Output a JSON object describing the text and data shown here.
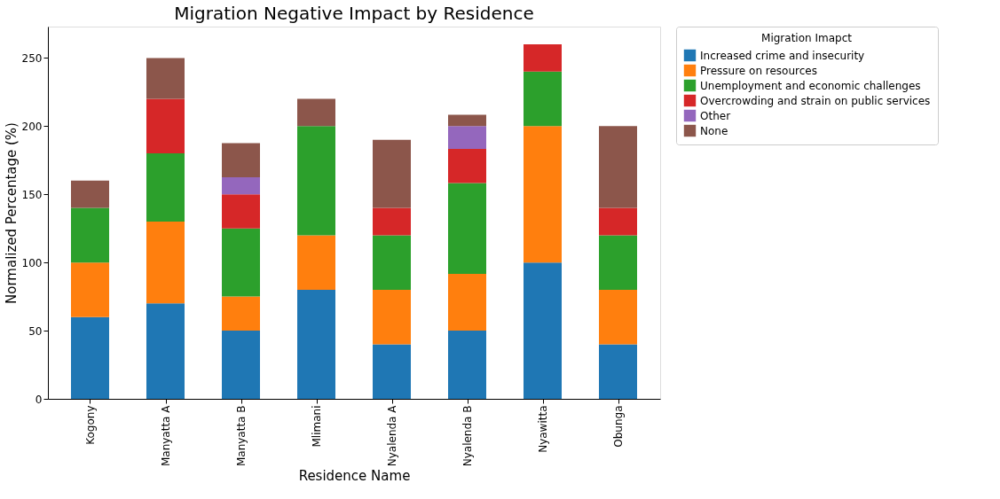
{
  "chart_data": {
    "type": "bar",
    "stacked": true,
    "title": "Migration Negative Impact by Residence",
    "xlabel": "Residence Name",
    "ylabel": "Normalized Percentage (%)",
    "legend_title": "Migration Imapct",
    "legend": "right",
    "grid": false,
    "categories": [
      "Kogony",
      "Manyatta A",
      "Manyatta B",
      "Mlimani",
      "Nyalenda A",
      "Nyalenda B",
      "Nyawitta",
      "Obunga"
    ],
    "ylim": [
      0,
      273
    ],
    "yticks": [
      0,
      50,
      100,
      150,
      200,
      250
    ],
    "series": [
      {
        "name": "Increased crime and insecurity",
        "color": "#1f77b4",
        "values": [
          60,
          70,
          50,
          80,
          40,
          50,
          100,
          40
        ]
      },
      {
        "name": "Pressure on resources",
        "color": "#ff7f0e",
        "values": [
          40,
          60,
          25,
          40,
          40,
          41.7,
          100,
          40
        ]
      },
      {
        "name": "Unemployment and economic challenges",
        "color": "#2ca02c",
        "values": [
          40,
          50,
          50,
          80,
          40,
          66.6,
          40,
          40
        ]
      },
      {
        "name": "Overcrowding and strain on public services",
        "color": "#d62728",
        "values": [
          0,
          40,
          25,
          0,
          20,
          25,
          20,
          20
        ]
      },
      {
        "name": "Other",
        "color": "#9467bd",
        "values": [
          0,
          0,
          12.5,
          0,
          0,
          16.7,
          0,
          0
        ]
      },
      {
        "name": "None",
        "color": "#8c564b",
        "values": [
          20,
          30,
          25,
          20,
          50,
          8.3,
          0,
          60
        ]
      }
    ]
  }
}
